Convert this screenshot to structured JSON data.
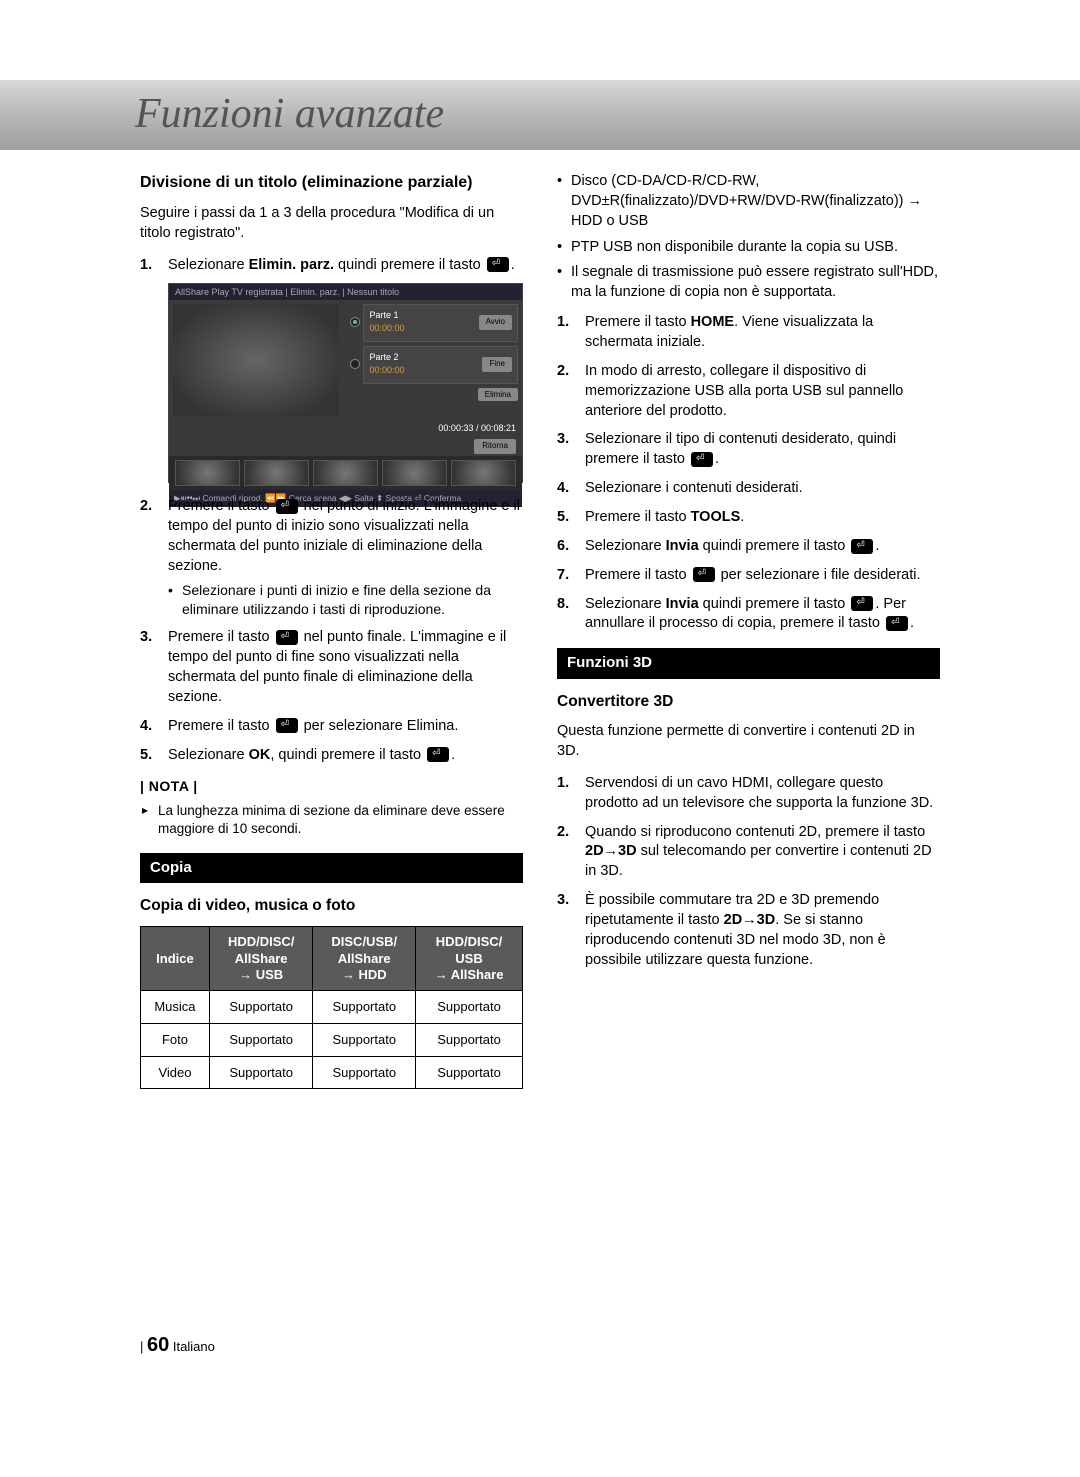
{
  "header": {
    "title": "Funzioni avanzate"
  },
  "left_col": {
    "section1_title": "Divisione di un titolo (eliminazione parziale)",
    "intro": "Seguire i passi da 1 a 3 della procedura \"Modifica di un titolo registrato\".",
    "step1_a": "Selezionare ",
    "step1_bold": "Elimin. parz.",
    "step1_b": " quindi premere il tasto ",
    "screenshot": {
      "topbar": "AllShare Play TV registrata | Elimin. parz. | Nessun titolo",
      "part1_label": "Parte 1",
      "part1_time": "00:00:00",
      "part1_btn": "Avvio",
      "part2_label": "Parte 2",
      "part2_time": "00:00:00",
      "part2_btn": "Fine",
      "elimina_btn": "Elimina",
      "timebar": "00:00:33 / 00:08:21",
      "return_btn": "Ritorna",
      "footer": "▶⏸⏮⏭ Comandi riprod. ⏪⏩ Cerca scena ◀▶ Salta ⬍ Sposta ⏎ Conferma"
    },
    "step2_a": "Premere il tasto ",
    "step2_b": " nel punto di inizio. L'immagine e il tempo del punto di inizio sono visualizzati nella schermata del punto iniziale di eliminazione della sezione.",
    "step2_bullet": "Selezionare i punti di inizio e fine della sezione da eliminare utilizzando i tasti di riproduzione.",
    "step3_a": "Premere il tasto ",
    "step3_b": " nel punto finale. L'immagine e il tempo del punto di fine sono visualizzati nella schermata del punto finale di eliminazione della sezione.",
    "step4_a": "Premere il tasto ",
    "step4_b": " per selezionare Elimina.",
    "step5_a": "Selezionare ",
    "step5_bold": "OK",
    "step5_b": ", quindi premere il tasto ",
    "nota_label": "| NOTA |",
    "nota1": "La lunghezza minima di sezione da eliminare deve essere maggiore di 10 secondi.",
    "copia_banner": "Copia",
    "copia_heading": "Copia di video, musica o foto",
    "table": {
      "headers": [
        "Indice",
        "HDD/DISC/\nAllShare\n→ USB",
        "DISC/USB/\nAllShare\n→ HDD",
        "HDD/DISC/\nUSB\n→ AllShare"
      ],
      "rows": [
        [
          "Musica",
          "Supportato",
          "Supportato",
          "Supportato"
        ],
        [
          "Foto",
          "Supportato",
          "Supportato",
          "Supportato"
        ],
        [
          "Video",
          "Supportato",
          "Supportato",
          "Supportato"
        ]
      ]
    }
  },
  "right_col": {
    "bullets": [
      "Disco (CD-DA/CD-R/CD-RW, DVD±R(finalizzato)/DVD+RW/DVD-RW(finalizzato)) → HDD o USB",
      "PTP USB non disponibile durante la copia su USB.",
      "Il segnale di trasmissione può essere registrato sull'HDD, ma la funzione di copia non è supportata."
    ],
    "step1_a": "Premere il tasto ",
    "step1_bold": "HOME",
    "step1_b": ". Viene visualizzata la schermata iniziale.",
    "step2": "In modo di arresto, collegare il dispositivo di memorizzazione USB alla porta USB sul pannello anteriore del prodotto.",
    "step3_a": "Selezionare il tipo di contenuti desiderato, quindi premere il tasto ",
    "step4": "Selezionare i contenuti desiderati.",
    "step5_a": "Premere il tasto ",
    "step5_bold": "TOOLS",
    "step6_a": "Selezionare ",
    "step6_bold": "Invia",
    "step6_b": " quindi premere il tasto ",
    "step7_a": "Premere il tasto ",
    "step7_b": " per selezionare i file desiderati.",
    "step8_a": "Selezionare ",
    "step8_bold": "Invia",
    "step8_b": " quindi premere il tasto ",
    "step8_c": ". Per annullare il processo di copia, premere il tasto ",
    "f3d_banner": "Funzioni 3D",
    "f3d_heading": "Convertitore 3D",
    "f3d_intro": "Questa funzione permette di convertire i contenuti 2D in 3D.",
    "f3d_step1": "Servendosi di un cavo HDMI, collegare questo prodotto ad un televisore che supporta la funzione 3D.",
    "f3d_step2_a": "Quando si riproducono contenuti 2D, premere il tasto ",
    "f3d_step2_bold": "2D→3D",
    "f3d_step2_b": " sul telecomando per convertire i contenuti 2D in 3D.",
    "f3d_step3_a": "È possibile commutare tra 2D e 3D premendo ripetutamente il tasto ",
    "f3d_step3_bold": "2D→3D",
    "f3d_step3_b": ". Se si stanno riproducendo contenuti 3D nel modo 3D, non è possibile utilizzare questa funzione."
  },
  "footer": {
    "page_num": "60",
    "lang": "Italiano"
  }
}
